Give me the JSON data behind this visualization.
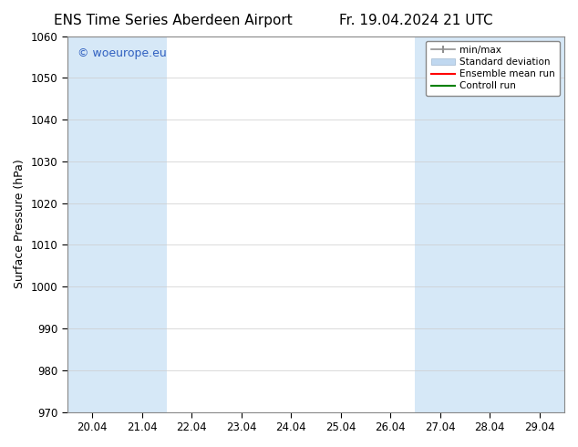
{
  "title_left": "ENS Time Series Aberdeen Airport",
  "title_right": "Fr. 19.04.2024 21 UTC",
  "ylabel": "Surface Pressure (hPa)",
  "ylim": [
    970,
    1060
  ],
  "yticks": [
    970,
    980,
    990,
    1000,
    1010,
    1020,
    1030,
    1040,
    1050,
    1060
  ],
  "xtick_labels": [
    "20.04",
    "21.04",
    "22.04",
    "23.04",
    "24.04",
    "25.04",
    "26.04",
    "27.04",
    "28.04",
    "29.04"
  ],
  "xtick_positions": [
    0,
    1,
    2,
    3,
    4,
    5,
    6,
    7,
    8,
    9
  ],
  "xlim": [
    -0.5,
    9.5
  ],
  "band1_x0": -0.5,
  "band1_x1": 1.5,
  "band2_x0": 6.5,
  "band2_x1": 9.5,
  "band_color": "#d6e8f7",
  "watermark_text": "© woeurope.eu",
  "watermark_color": "#3060c0",
  "legend_labels": [
    "min/max",
    "Standard deviation",
    "Ensemble mean run",
    "Controll run"
  ],
  "legend_colors": [
    "#909090",
    "#c0d8f0",
    "red",
    "green"
  ],
  "background_color": "#ffffff",
  "plot_bg_color": "#ffffff",
  "grid_color": "#cccccc",
  "title_fontsize": 11,
  "axis_label_fontsize": 9,
  "tick_fontsize": 8.5,
  "watermark_fontsize": 9,
  "legend_fontsize": 7.5
}
